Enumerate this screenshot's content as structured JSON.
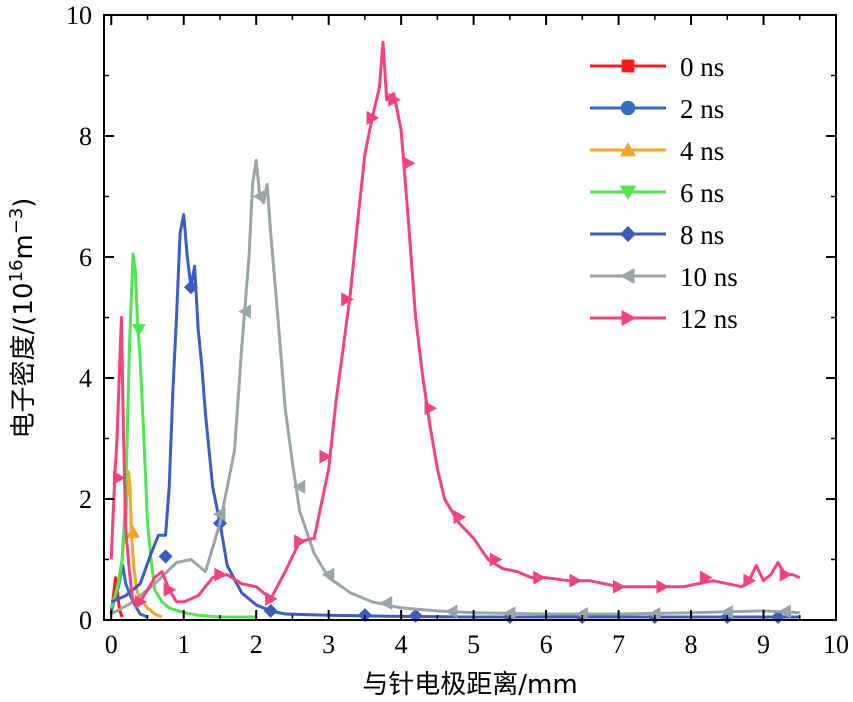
{
  "chart_data": {
    "type": "line",
    "xlabel": "与针电极距离/mm",
    "ylabel_prefix": "电子密度/(10",
    "ylabel_exp1": "16",
    "ylabel_mid": "m",
    "ylabel_exp2": "−3",
    "ylabel_suffix": ")",
    "xlim": [
      -0.1,
      10
    ],
    "ylim": [
      0,
      10
    ],
    "x_ticks": [
      0,
      1,
      2,
      3,
      4,
      5,
      6,
      7,
      8,
      9,
      10
    ],
    "y_ticks": [
      0,
      2,
      4,
      6,
      8,
      10
    ],
    "grid": false,
    "legend_position": "top-right",
    "series": [
      {
        "name": "0 ns",
        "color": "#ff1a1a",
        "marker": "square",
        "x": [
          0.0,
          0.02,
          0.04,
          0.06,
          0.08,
          0.1,
          0.12,
          0.15
        ],
        "y": [
          0.1,
          0.3,
          0.5,
          0.7,
          0.55,
          0.3,
          0.15,
          0.05
        ],
        "markers": []
      },
      {
        "name": "2 ns",
        "color": "#2c6fbf",
        "marker": "circle",
        "x": [
          0.0,
          0.05,
          0.1,
          0.13,
          0.16,
          0.2,
          0.25,
          0.3,
          0.35,
          0.4,
          0.5
        ],
        "y": [
          0.15,
          0.35,
          0.55,
          0.75,
          0.9,
          0.6,
          0.45,
          0.3,
          0.2,
          0.1,
          0.05
        ],
        "markers": []
      },
      {
        "name": "4 ns",
        "color": "#f5a623",
        "marker": "triangle-up",
        "x": [
          0.0,
          0.08,
          0.15,
          0.2,
          0.24,
          0.26,
          0.28,
          0.31,
          0.35,
          0.4,
          0.5,
          0.6,
          0.7
        ],
        "y": [
          0.2,
          0.5,
          1.0,
          1.7,
          2.45,
          2.2,
          1.4,
          0.9,
          0.5,
          0.35,
          0.2,
          0.1,
          0.05
        ],
        "markers": [
          [
            0.3,
            1.45
          ]
        ]
      },
      {
        "name": "6 ns",
        "color": "#4de84d",
        "marker": "triangle-down",
        "x": [
          0.0,
          0.1,
          0.15,
          0.2,
          0.25,
          0.3,
          0.33,
          0.36,
          0.4,
          0.45,
          0.5,
          0.55,
          0.6,
          0.7,
          0.8,
          1.0,
          1.2,
          1.5,
          1.8,
          2.0
        ],
        "y": [
          0.2,
          0.6,
          1.0,
          2.0,
          4.5,
          6.05,
          5.8,
          5.0,
          4.3,
          3.0,
          1.6,
          1.0,
          0.5,
          0.3,
          0.2,
          0.12,
          0.08,
          0.05,
          0.05,
          0.05
        ],
        "markers": [
          [
            0.38,
            4.8
          ]
        ]
      },
      {
        "name": "8 ns",
        "color": "#3a5dc4",
        "marker": "diamond",
        "x": [
          0.0,
          0.2,
          0.4,
          0.55,
          0.65,
          0.75,
          0.8,
          0.85,
          0.9,
          0.95,
          1.0,
          1.05,
          1.1,
          1.15,
          1.2,
          1.25,
          1.3,
          1.4,
          1.5,
          1.6,
          1.8,
          2.0,
          2.2,
          2.4,
          3.0,
          4.0,
          5.0,
          6.0,
          7.0,
          8.0,
          9.0,
          9.5
        ],
        "y": [
          0.3,
          0.4,
          0.6,
          1.1,
          1.4,
          1.4,
          2.2,
          3.8,
          5.0,
          6.4,
          6.7,
          6.0,
          5.5,
          5.85,
          4.8,
          4.2,
          3.4,
          2.2,
          1.6,
          0.9,
          0.45,
          0.25,
          0.15,
          0.1,
          0.08,
          0.06,
          0.05,
          0.05,
          0.05,
          0.05,
          0.05,
          0.05
        ],
        "markers": [
          [
            0.75,
            1.05
          ],
          [
            1.1,
            5.5
          ],
          [
            1.5,
            1.6
          ],
          [
            2.2,
            0.15
          ],
          [
            3.5,
            0.08
          ],
          [
            4.2,
            0.07
          ],
          [
            5.5,
            0.05
          ],
          [
            6.5,
            0.05
          ],
          [
            7.5,
            0.05
          ],
          [
            8.5,
            0.05
          ],
          [
            9.2,
            0.05
          ]
        ]
      },
      {
        "name": "10 ns",
        "color": "#98a6aa",
        "marker": "triangle-left",
        "x": [
          0.0,
          0.3,
          0.6,
          0.9,
          1.1,
          1.3,
          1.5,
          1.7,
          1.8,
          1.9,
          1.95,
          2.0,
          2.05,
          2.1,
          2.15,
          2.2,
          2.3,
          2.4,
          2.5,
          2.6,
          2.8,
          3.0,
          3.3,
          3.6,
          4.0,
          4.5,
          5.0,
          6.0,
          7.0,
          8.0,
          9.0,
          9.5
        ],
        "y": [
          0.1,
          0.3,
          0.6,
          0.95,
          1.0,
          0.8,
          1.6,
          2.8,
          4.5,
          6.0,
          7.2,
          7.6,
          7.0,
          6.9,
          7.2,
          6.4,
          5.0,
          3.5,
          2.6,
          1.8,
          1.1,
          0.7,
          0.45,
          0.3,
          0.2,
          0.15,
          0.12,
          0.1,
          0.1,
          0.12,
          0.15,
          0.12
        ],
        "markers": [
          [
            1.5,
            1.75
          ],
          [
            1.85,
            5.1
          ],
          [
            2.05,
            7.0
          ],
          [
            2.6,
            2.2
          ],
          [
            3.0,
            0.75
          ],
          [
            3.8,
            0.28
          ],
          [
            4.7,
            0.14
          ],
          [
            5.5,
            0.11
          ],
          [
            6.5,
            0.1
          ],
          [
            7.5,
            0.1
          ],
          [
            8.5,
            0.13
          ],
          [
            9.3,
            0.14
          ]
        ]
      },
      {
        "name": "12 ns",
        "color": "#f5427d",
        "marker": "triangle-right",
        "x": [
          0.0,
          0.05,
          0.08,
          0.11,
          0.14,
          0.17,
          0.2,
          0.25,
          0.3,
          0.4,
          0.5,
          0.6,
          0.7,
          0.8,
          0.9,
          1.0,
          1.2,
          1.4,
          1.6,
          1.8,
          2.0,
          2.2,
          2.4,
          2.6,
          2.8,
          3.0,
          3.1,
          3.2,
          3.3,
          3.4,
          3.5,
          3.6,
          3.7,
          3.75,
          3.8,
          3.9,
          4.0,
          4.1,
          4.2,
          4.3,
          4.4,
          4.5,
          4.6,
          4.8,
          5.0,
          5.2,
          5.4,
          5.6,
          5.8,
          6.0,
          6.3,
          6.6,
          7.0,
          7.3,
          7.6,
          7.9,
          8.1,
          8.3,
          8.5,
          8.7,
          8.8,
          8.9,
          9.0,
          9.1,
          9.2,
          9.3,
          9.4,
          9.5
        ],
        "y": [
          1.0,
          2.4,
          3.0,
          4.0,
          5.0,
          3.0,
          1.5,
          0.8,
          0.3,
          0.3,
          0.5,
          0.7,
          0.8,
          0.5,
          0.3,
          0.3,
          0.4,
          0.7,
          0.75,
          0.6,
          0.55,
          0.35,
          0.8,
          1.3,
          1.35,
          2.5,
          3.6,
          4.5,
          5.4,
          6.6,
          7.7,
          8.3,
          8.8,
          9.55,
          8.6,
          8.7,
          8.1,
          6.6,
          5.0,
          4.0,
          3.2,
          2.5,
          2.0,
          1.6,
          1.35,
          1.0,
          0.85,
          0.8,
          0.7,
          0.7,
          0.65,
          0.65,
          0.55,
          0.55,
          0.55,
          0.55,
          0.6,
          0.65,
          0.6,
          0.55,
          0.65,
          0.9,
          0.65,
          0.75,
          0.95,
          0.75,
          0.75,
          0.7
        ],
        "markers": [
          [
            0.1,
            2.35
          ],
          [
            0.4,
            0.3
          ],
          [
            0.8,
            0.5
          ],
          [
            1.5,
            0.75
          ],
          [
            2.2,
            0.35
          ],
          [
            2.6,
            1.3
          ],
          [
            2.95,
            2.7
          ],
          [
            3.25,
            5.3
          ],
          [
            3.6,
            8.3
          ],
          [
            3.9,
            8.6
          ],
          [
            4.1,
            7.55
          ],
          [
            4.4,
            3.5
          ],
          [
            4.8,
            1.7
          ],
          [
            5.3,
            1.0
          ],
          [
            5.9,
            0.7
          ],
          [
            6.4,
            0.65
          ],
          [
            7.0,
            0.55
          ],
          [
            7.6,
            0.55
          ],
          [
            8.2,
            0.7
          ],
          [
            8.8,
            0.65
          ],
          [
            9.3,
            0.75
          ]
        ]
      }
    ]
  }
}
